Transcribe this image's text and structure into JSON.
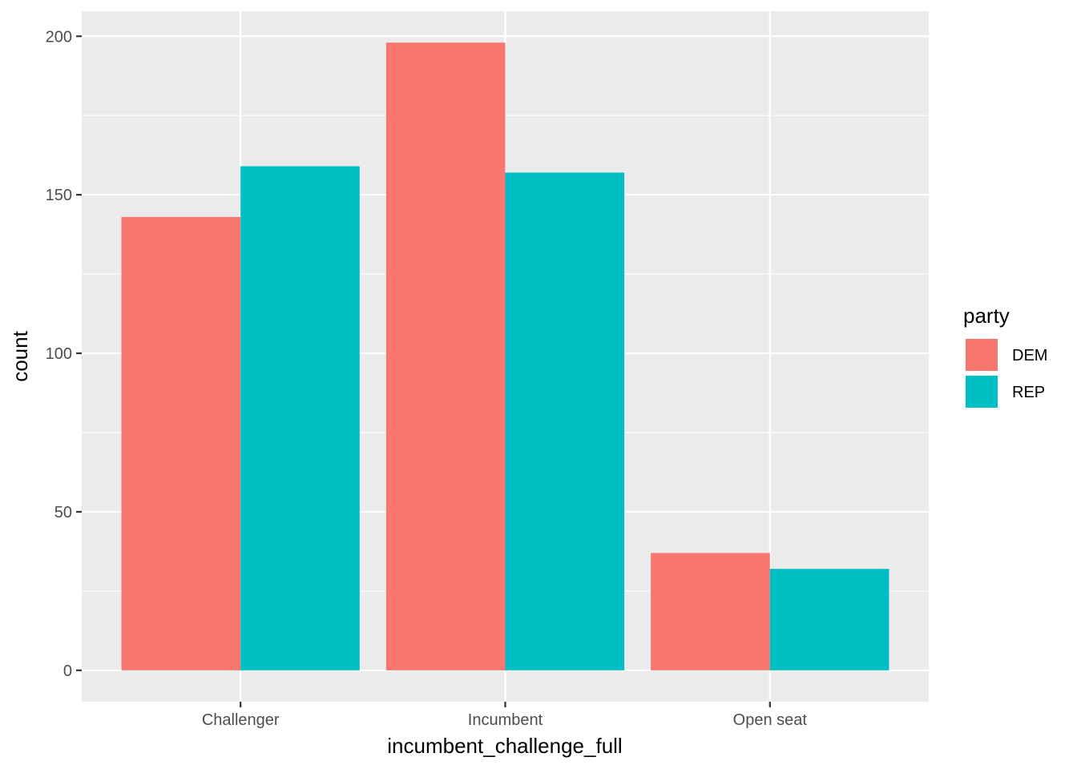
{
  "chart_data": {
    "type": "bar",
    "title": "",
    "xlabel": "incumbent_challenge_full",
    "ylabel": "count",
    "categories": [
      "Challenger",
      "Incumbent",
      "Open seat"
    ],
    "series": [
      {
        "name": "DEM",
        "color": "#F8766D",
        "values": [
          143,
          198,
          37
        ]
      },
      {
        "name": "REP",
        "color": "#00BFC4",
        "values": [
          159,
          157,
          32
        ]
      }
    ],
    "ylim": [
      -9.9,
      207.9
    ],
    "yticks": [
      0,
      50,
      100,
      150,
      200
    ],
    "ytick_labels": [
      "0",
      "50",
      "100",
      "150",
      "200"
    ],
    "legend": {
      "title": "party",
      "placement": "right",
      "entries": [
        "DEM",
        "REP"
      ]
    },
    "grid": true,
    "panel_color": "#EBEBEB"
  }
}
